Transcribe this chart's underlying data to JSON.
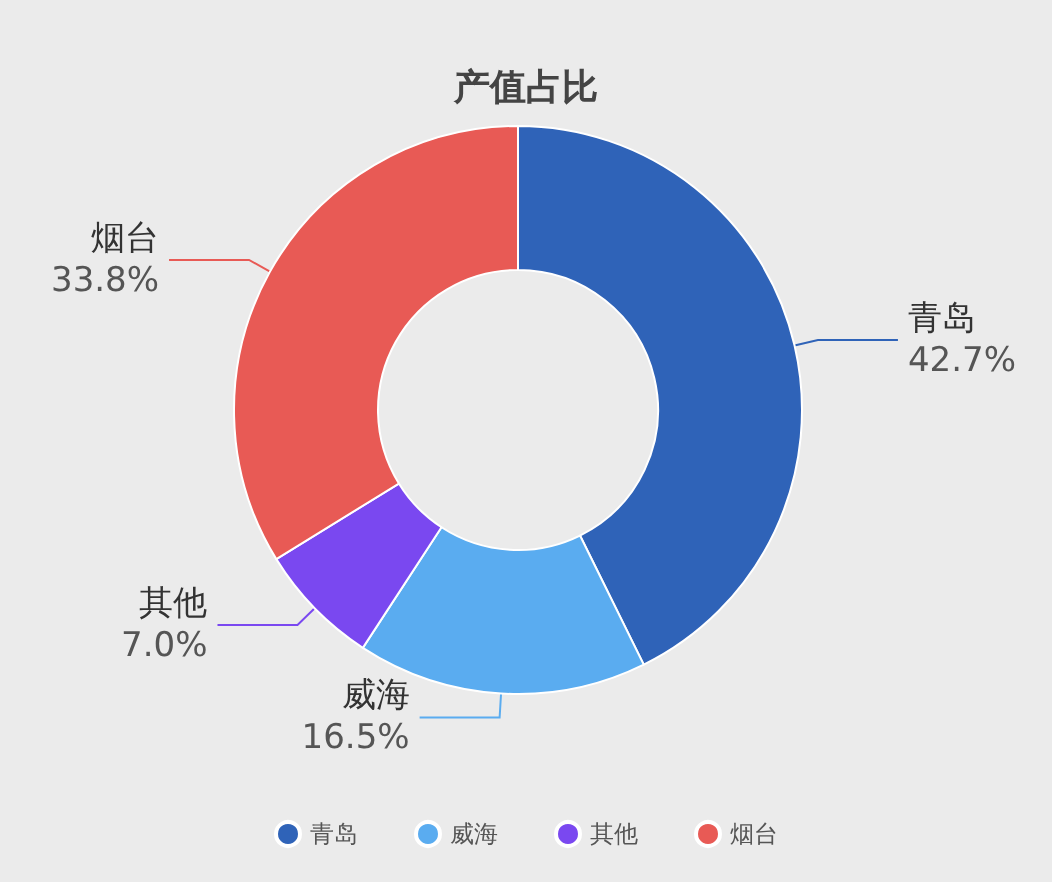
{
  "chart_data": {
    "type": "donut",
    "title": "产值占比",
    "categories": [
      "青岛",
      "威海",
      "其他",
      "烟台"
    ],
    "values": [
      42.7,
      16.5,
      7.0,
      33.8
    ],
    "value_labels": [
      "42.7%",
      "16.5%",
      "7.0%",
      "33.8%"
    ],
    "colors": [
      "#2f63b8",
      "#5aacf0",
      "#7a48f0",
      "#e85a55"
    ],
    "legend": "bottom"
  }
}
